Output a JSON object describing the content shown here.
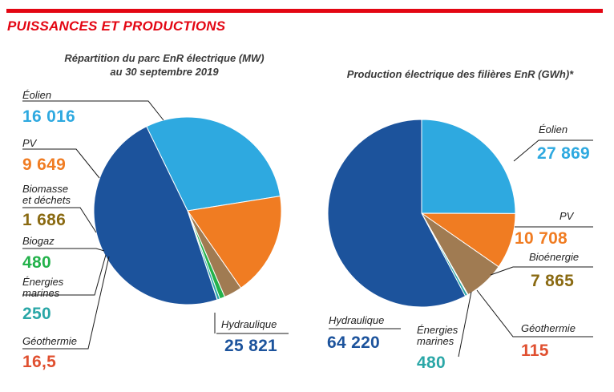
{
  "header": {
    "title": "PUISSANCES ET PRODUCTIONS",
    "rule_color": "#e30613"
  },
  "chart_data": [
    {
      "type": "pie",
      "title_lines": [
        "Répartition du parc EnR électrique (MW)",
        "au 30 septembre 2019"
      ],
      "unit": "MW",
      "slices": [
        {
          "label": "Éolien",
          "display_value": "16 016",
          "value": 16016,
          "color": "#2ea9e0",
          "label_color": "#2ea9e0"
        },
        {
          "label": "PV",
          "display_value": "9 649",
          "value": 9649,
          "color": "#f07c22",
          "label_color": "#f07c22"
        },
        {
          "label": "Biomasse et déchets",
          "label_lines": [
            "Biomasse",
            "et déchets"
          ],
          "display_value": "1 686",
          "value": 1686,
          "color": "#a07b52",
          "label_color": "#8a6a12"
        },
        {
          "label": "Biogaz",
          "display_value": "480",
          "value": 480,
          "color": "#23b24b",
          "label_color": "#23b24b"
        },
        {
          "label": "Énergies marines",
          "label_lines": [
            "Énergies",
            "marines"
          ],
          "display_value": "250",
          "value": 250,
          "color": "#2aa7a7",
          "label_color": "#2aa7a7"
        },
        {
          "label": "Géothermie",
          "display_value": "16,5",
          "value": 16.5,
          "color": "#e05030",
          "label_color": "#e05030"
        },
        {
          "label": "Hydraulique",
          "display_value": "25 821",
          "value": 25821,
          "color": "#1c539c",
          "label_color": "#1c539c"
        }
      ]
    },
    {
      "type": "pie",
      "title_lines": [
        "Production électrique des filières EnR (GWh)*"
      ],
      "unit": "GWh",
      "slices": [
        {
          "label": "Éolien",
          "display_value": "27 869",
          "value": 27869,
          "color": "#2ea9e0",
          "label_color": "#2ea9e0"
        },
        {
          "label": "PV",
          "display_value": "10 708",
          "value": 10708,
          "color": "#f07c22",
          "label_color": "#f07c22"
        },
        {
          "label": "Bioénergie",
          "display_value": "7 865",
          "value": 7865,
          "color": "#a07b52",
          "label_color": "#8a6a12"
        },
        {
          "label": "Géothermie",
          "display_value": "115",
          "value": 115,
          "color": "#e05030",
          "label_color": "#e05030"
        },
        {
          "label": "Énergies marines",
          "label_lines": [
            "Énergies",
            "marines"
          ],
          "display_value": "480",
          "value": 480,
          "color": "#2aa7a7",
          "label_color": "#2aa7a7"
        },
        {
          "label": "Hydraulique",
          "display_value": "64 220",
          "value": 64220,
          "color": "#1c539c",
          "label_color": "#1c539c"
        }
      ]
    }
  ]
}
